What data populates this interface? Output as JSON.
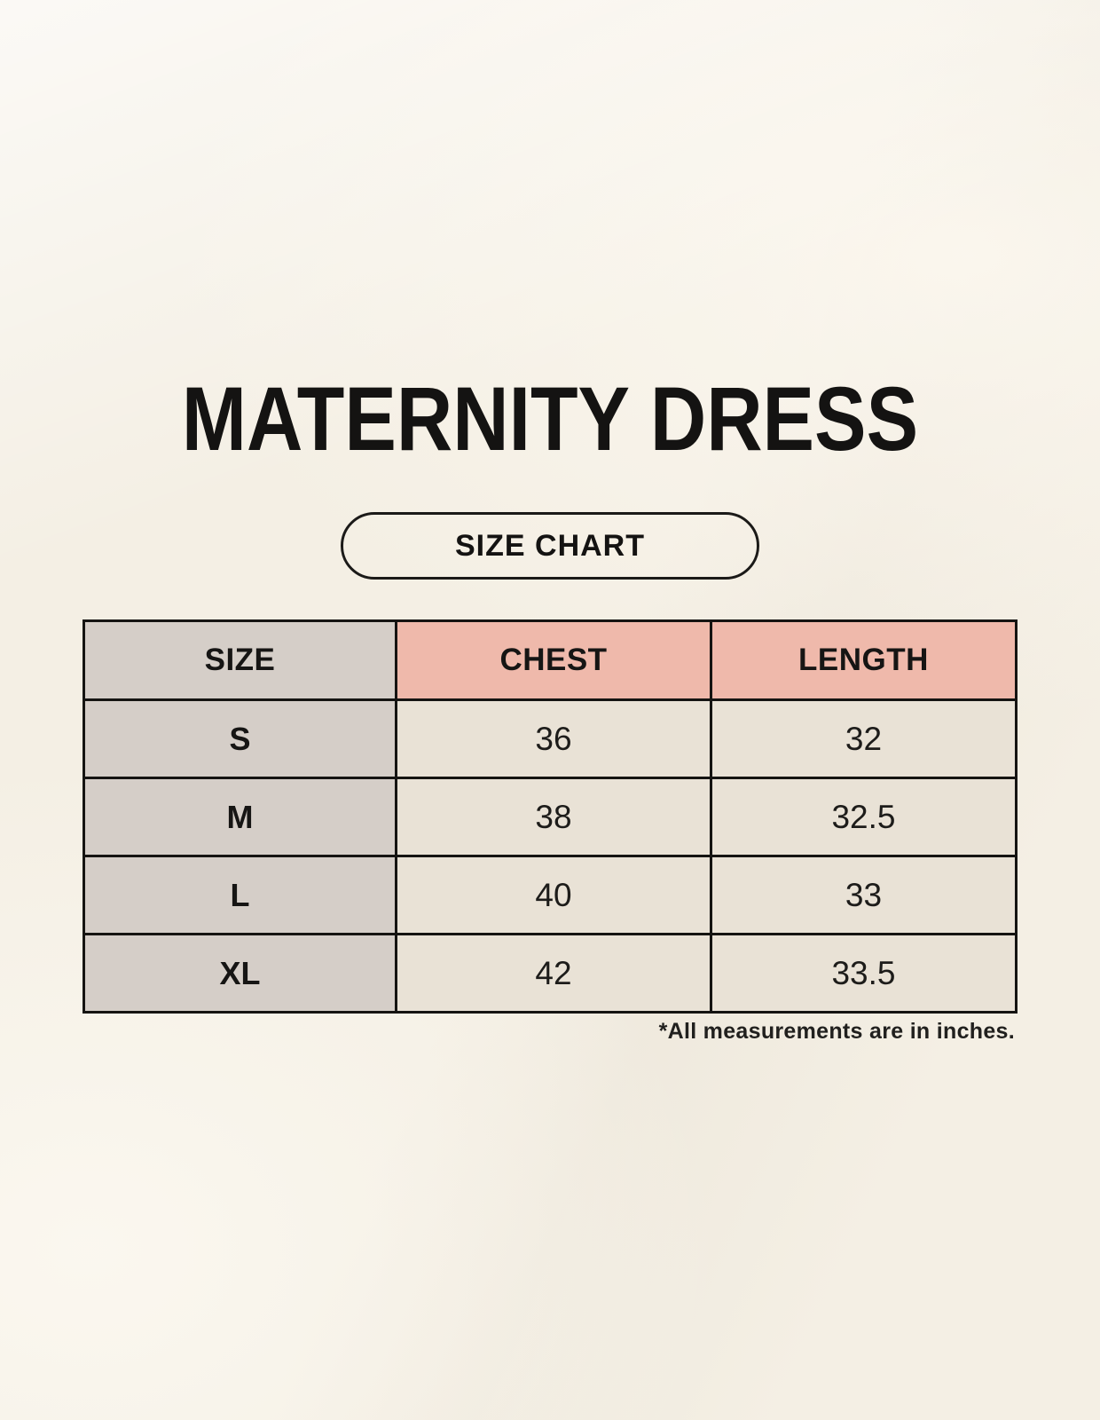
{
  "page": {
    "title": "MATERNITY DRESS",
    "badge_label": "SIZE CHART",
    "footnote": "*All measurements are in inches."
  },
  "chart_data": {
    "type": "table",
    "title": "MATERNITY DRESS",
    "subtitle": "SIZE CHART",
    "columns": [
      "SIZE",
      "CHEST",
      "LENGTH"
    ],
    "rows": [
      [
        "S",
        "36",
        "32"
      ],
      [
        "M",
        "38",
        "32.5"
      ],
      [
        "L",
        "40",
        "33"
      ],
      [
        "XL",
        "42",
        "33.5"
      ]
    ],
    "unit_note": "*All measurements are in inches."
  },
  "colors": {
    "page_background": "#f4efe4",
    "label_column_bg": "#d5cec8",
    "measure_header_bg": "#efb9ab",
    "value_cell_bg": "#e9e2d6",
    "border": "#151412",
    "text": "#141312"
  }
}
